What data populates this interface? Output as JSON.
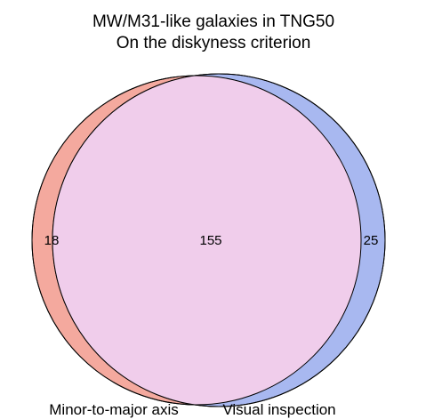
{
  "title": {
    "line1": "MW/M31-like galaxies in TNG50",
    "line2": "On the diskyness criterion"
  },
  "chart_data": {
    "type": "venn",
    "sets": [
      {
        "name": "Minor-to-major axis",
        "only_count": "18",
        "color": "#f4a99e"
      },
      {
        "name": "Visual inspection",
        "only_count": "25",
        "color": "#a8b8f0"
      }
    ],
    "intersection_count": "155",
    "intersection_color": "#f0cdeb"
  }
}
